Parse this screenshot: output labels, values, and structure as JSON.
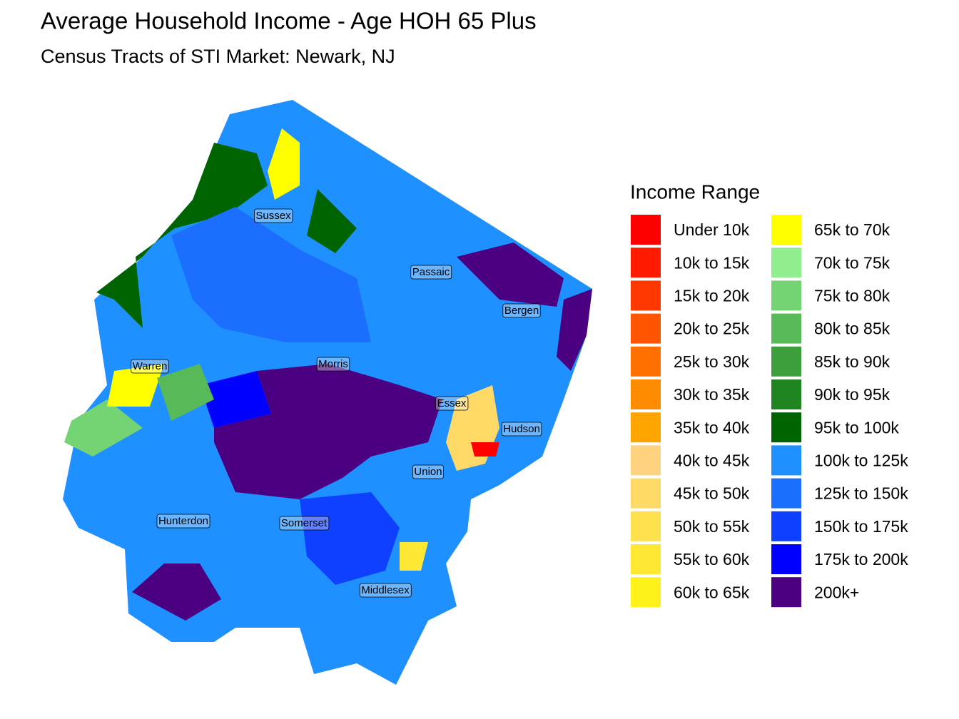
{
  "title": "Average Household Income - Age HOH 65 Plus",
  "subtitle": "Census Tracts of STI Market: Newark, NJ",
  "legend": {
    "title": "Income Range",
    "items": [
      {
        "label": "Under 10k",
        "color": "#FF0000"
      },
      {
        "label": "10k to 15k",
        "color": "#FF1A00"
      },
      {
        "label": "15k to 20k",
        "color": "#FF3800"
      },
      {
        "label": "20k to 25k",
        "color": "#FF5500"
      },
      {
        "label": "25k to 30k",
        "color": "#FF7000"
      },
      {
        "label": "30k to 35k",
        "color": "#FF8C00"
      },
      {
        "label": "35k to 40k",
        "color": "#FFA500"
      },
      {
        "label": "40k to 45k",
        "color": "#FFD280"
      },
      {
        "label": "45k to 50k",
        "color": "#FFD966"
      },
      {
        "label": "50k to 55k",
        "color": "#FFE04D"
      },
      {
        "label": "55k to 60k",
        "color": "#FFE833"
      },
      {
        "label": "60k to 65k",
        "color": "#FFF21A"
      },
      {
        "label": "65k to 70k",
        "color": "#FFFF00"
      },
      {
        "label": "70k to 75k",
        "color": "#90EE90"
      },
      {
        "label": "75k to 80k",
        "color": "#74D474"
      },
      {
        "label": "80k to 85k",
        "color": "#58B958"
      },
      {
        "label": "85k to 90k",
        "color": "#3C9F3C"
      },
      {
        "label": "90k to 95k",
        "color": "#1F841F"
      },
      {
        "label": "95k to 100k",
        "color": "#006400"
      },
      {
        "label": "100k to 125k",
        "color": "#1E90FF"
      },
      {
        "label": "125k to 150k",
        "color": "#1C6EFF"
      },
      {
        "label": "150k to 175k",
        "color": "#1040FF"
      },
      {
        "label": "175k to 200k",
        "color": "#0000FF"
      },
      {
        "label": "200k+",
        "color": "#4B0082"
      }
    ]
  },
  "counties": [
    "Sussex",
    "Passaic",
    "Bergen",
    "Warren",
    "Morris",
    "Essex",
    "Hudson",
    "Union",
    "Hunterdon",
    "Somerset",
    "Middlesex"
  ]
}
